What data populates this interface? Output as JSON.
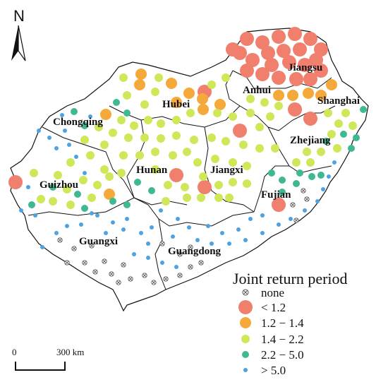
{
  "north_arrow": {
    "label": "N"
  },
  "provinces": {
    "jiangsu": "Jiangsu",
    "anhui": "Anhui",
    "shanghai": "Shanghai",
    "hubei": "Hubei",
    "chongqing": "Chongqing",
    "zhejiang": "Zhejiang",
    "hunan": "Hunan",
    "jiangxi": "Jiangxi",
    "guizhou": "Guizhou",
    "fujian": "Fujian",
    "guangxi": "Guangxi",
    "guangdong": "Guangdong"
  },
  "legend": {
    "title": "Joint return period",
    "items": [
      {
        "label": "none",
        "color": "#555555",
        "symbol": "crossed-circle"
      },
      {
        "label": "< 1.2",
        "color": "#f07f6e",
        "symbol": "circle"
      },
      {
        "label": "1.2 − 1.4",
        "color": "#f5a93a",
        "symbol": "circle"
      },
      {
        "label": "1.4 − 2.2",
        "color": "#cfe85a",
        "symbol": "circle"
      },
      {
        "label": "2.2 − 5.0",
        "color": "#3fb991",
        "symbol": "circle"
      },
      {
        "label": "> 5.0",
        "color": "#4ea2e0",
        "symbol": "circle"
      }
    ]
  },
  "scale_bar": {
    "start": "0",
    "end": "300 km"
  }
}
